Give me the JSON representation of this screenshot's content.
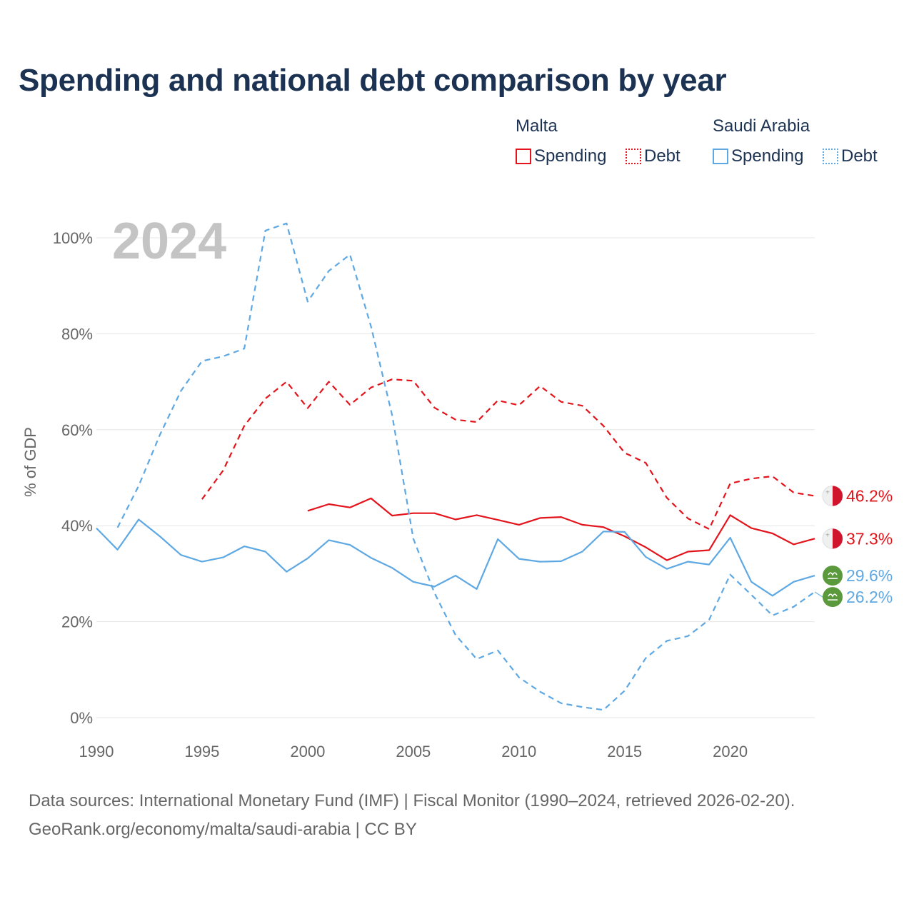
{
  "title": "Spending and national debt comparison by year",
  "legend": {
    "groups": [
      {
        "name": "Malta",
        "items": [
          "Spending",
          "Debt"
        ]
      },
      {
        "name": "Saudi Arabia",
        "items": [
          "Spending",
          "Debt"
        ]
      }
    ]
  },
  "source_line1": "Data sources: International Monetary Fund (IMF) | Fiscal Monitor (1990–2024, retrieved 2026-02-20).",
  "source_line2": "GeoRank.org/economy/malta/saudi-arabia | CC BY",
  "colors": {
    "malta": "#e3141b",
    "saudi": "#5ea8e3",
    "grid": "#e6e6e6",
    "axis_text": "#666666",
    "year_watermark": "#c4c4c4"
  },
  "chart_data": {
    "type": "line",
    "year_label": "2024",
    "ylabel": "% of GDP",
    "xlim": [
      1990,
      2024
    ],
    "ylim": [
      0,
      100
    ],
    "x_ticks": [
      1990,
      1995,
      2000,
      2005,
      2010,
      2015,
      2020
    ],
    "y_ticks": [
      0,
      20,
      40,
      60,
      80,
      100
    ],
    "y_tick_labels": [
      "0%",
      "20%",
      "40%",
      "60%",
      "80%",
      "100%"
    ],
    "series": [
      {
        "name": "Malta Spending",
        "country": "Malta",
        "metric": "Spending",
        "color": "#e3141b",
        "dash": false,
        "end_label": "37.3%",
        "flag": "malta-flag-icon",
        "points": [
          [
            2000,
            43.1
          ],
          [
            2001,
            44.5
          ],
          [
            2002,
            43.8
          ],
          [
            2003,
            45.7
          ],
          [
            2004,
            42.1
          ],
          [
            2005,
            42.6
          ],
          [
            2006,
            42.6
          ],
          [
            2007,
            41.3
          ],
          [
            2008,
            42.2
          ],
          [
            2009,
            41.2
          ],
          [
            2010,
            40.2
          ],
          [
            2011,
            41.6
          ],
          [
            2012,
            41.8
          ],
          [
            2013,
            40.2
          ],
          [
            2014,
            39.7
          ],
          [
            2015,
            37.8
          ],
          [
            2016,
            35.5
          ],
          [
            2017,
            32.8
          ],
          [
            2018,
            34.6
          ],
          [
            2019,
            34.9
          ],
          [
            2020,
            42.2
          ],
          [
            2021,
            39.5
          ],
          [
            2022,
            38.4
          ],
          [
            2023,
            36.1
          ],
          [
            2024,
            37.3
          ]
        ]
      },
      {
        "name": "Malta Debt",
        "country": "Malta",
        "metric": "Debt",
        "color": "#e3141b",
        "dash": true,
        "end_label": "46.2%",
        "flag": "malta-flag-icon",
        "points": [
          [
            1995,
            45.5
          ],
          [
            1996,
            51.5
          ],
          [
            1997,
            60.8
          ],
          [
            1998,
            66.5
          ],
          [
            1999,
            70.0
          ],
          [
            2000,
            64.5
          ],
          [
            2001,
            70.0
          ],
          [
            2002,
            65.2
          ],
          [
            2003,
            68.8
          ],
          [
            2004,
            70.5
          ],
          [
            2005,
            70.2
          ],
          [
            2006,
            64.6
          ],
          [
            2007,
            62.1
          ],
          [
            2008,
            61.6
          ],
          [
            2009,
            66.1
          ],
          [
            2010,
            65.1
          ],
          [
            2011,
            69.1
          ],
          [
            2012,
            65.8
          ],
          [
            2013,
            65.0
          ],
          [
            2014,
            60.8
          ],
          [
            2015,
            55.2
          ],
          [
            2016,
            53.1
          ],
          [
            2017,
            45.8
          ],
          [
            2018,
            41.5
          ],
          [
            2019,
            39.3
          ],
          [
            2020,
            48.8
          ],
          [
            2021,
            49.8
          ],
          [
            2022,
            50.3
          ],
          [
            2023,
            46.9
          ],
          [
            2024,
            46.2
          ]
        ]
      },
      {
        "name": "Saudi Arabia Spending",
        "country": "Saudi Arabia",
        "metric": "Spending",
        "color": "#5ea8e3",
        "dash": false,
        "end_label": "29.6%",
        "flag": "saudi-flag-icon",
        "points": [
          [
            1990,
            39.5
          ],
          [
            1991,
            35.0
          ],
          [
            1992,
            41.3
          ],
          [
            1993,
            37.8
          ],
          [
            1994,
            33.9
          ],
          [
            1995,
            32.5
          ],
          [
            1996,
            33.4
          ],
          [
            1997,
            35.7
          ],
          [
            1998,
            34.6
          ],
          [
            1999,
            30.4
          ],
          [
            2000,
            33.2
          ],
          [
            2001,
            37.0
          ],
          [
            2002,
            36.0
          ],
          [
            2003,
            33.3
          ],
          [
            2004,
            31.2
          ],
          [
            2005,
            28.3
          ],
          [
            2006,
            27.3
          ],
          [
            2007,
            29.6
          ],
          [
            2008,
            26.8
          ],
          [
            2009,
            37.2
          ],
          [
            2010,
            33.1
          ],
          [
            2011,
            32.5
          ],
          [
            2012,
            32.6
          ],
          [
            2013,
            34.6
          ],
          [
            2014,
            38.8
          ],
          [
            2015,
            38.7
          ],
          [
            2016,
            33.5
          ],
          [
            2017,
            31.0
          ],
          [
            2018,
            32.5
          ],
          [
            2019,
            31.9
          ],
          [
            2020,
            37.5
          ],
          [
            2021,
            28.3
          ],
          [
            2022,
            25.4
          ],
          [
            2023,
            28.3
          ],
          [
            2024,
            29.6
          ]
        ]
      },
      {
        "name": "Saudi Arabia Debt",
        "country": "Saudi Arabia",
        "metric": "Debt",
        "color": "#5ea8e3",
        "dash": true,
        "end_label": "26.2%",
        "flag": "saudi-flag-icon",
        "points": [
          [
            1991,
            39.6
          ],
          [
            1992,
            48.3
          ],
          [
            1993,
            58.9
          ],
          [
            1994,
            68.1
          ],
          [
            1995,
            74.3
          ],
          [
            1996,
            75.3
          ],
          [
            1997,
            76.9
          ],
          [
            1998,
            101.5
          ],
          [
            1999,
            103.0
          ],
          [
            2000,
            86.7
          ],
          [
            2001,
            93.1
          ],
          [
            2002,
            96.5
          ],
          [
            2003,
            81.5
          ],
          [
            2004,
            63.0
          ],
          [
            2005,
            37.3
          ],
          [
            2006,
            26.0
          ],
          [
            2007,
            17.2
          ],
          [
            2008,
            12.2
          ],
          [
            2009,
            14.0
          ],
          [
            2010,
            8.4
          ],
          [
            2011,
            5.4
          ],
          [
            2012,
            3.0
          ],
          [
            2013,
            2.2
          ],
          [
            2014,
            1.6
          ],
          [
            2015,
            5.6
          ],
          [
            2016,
            12.4
          ],
          [
            2017,
            16.0
          ],
          [
            2018,
            17.0
          ],
          [
            2019,
            20.4
          ],
          [
            2020,
            29.8
          ],
          [
            2021,
            25.6
          ],
          [
            2022,
            21.3
          ],
          [
            2023,
            23.1
          ],
          [
            2024,
            26.2
          ]
        ]
      }
    ]
  }
}
